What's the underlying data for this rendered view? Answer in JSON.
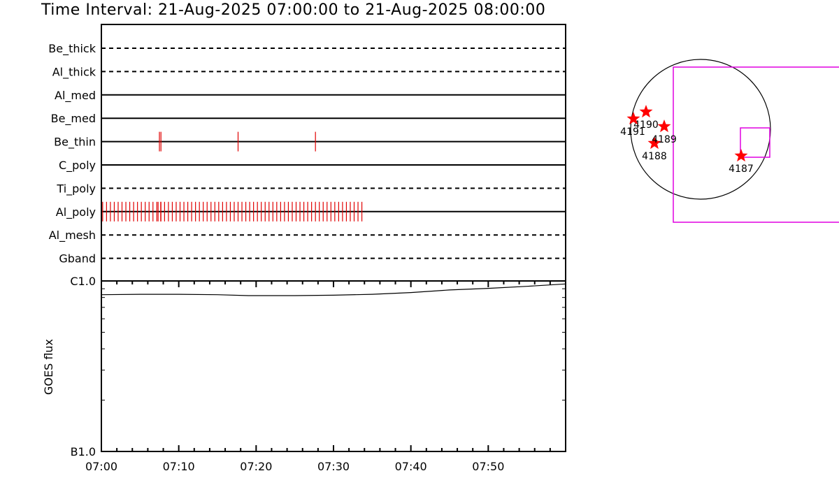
{
  "title": "Time Interval: 21-Aug-2025 07:00:00 to 21-Aug-2025 08:00:00",
  "colors": {
    "axes": "#000000",
    "events": "#e00000",
    "star": "#ff0000",
    "fov": "#e000e0"
  },
  "chart_data": [
    {
      "type": "event-timeline",
      "time_range": [
        "07:00:00",
        "08:00:00"
      ],
      "rows": [
        {
          "label": "Be_thick",
          "line": "dashed",
          "events": []
        },
        {
          "label": "Al_thick",
          "line": "dashed",
          "events": []
        },
        {
          "label": "Al_med",
          "line": "solid",
          "events": []
        },
        {
          "label": "Be_med",
          "line": "solid",
          "events": []
        },
        {
          "label": "Be_thin",
          "line": "solid",
          "events": [
            "07:07:30",
            "07:07:42",
            "07:17:40",
            "07:27:40"
          ]
        },
        {
          "label": "C_poly",
          "line": "solid",
          "events": []
        },
        {
          "label": "Ti_poly",
          "line": "dashed",
          "events": []
        },
        {
          "label": "Al_poly",
          "line": "solid",
          "events": {
            "start": "07:00:10",
            "end": "07:34:00",
            "step_seconds": 30,
            "extra": [
              "07:07:20",
              "07:07:42"
            ]
          }
        },
        {
          "label": "Al_mesh",
          "line": "dashed",
          "events": []
        },
        {
          "label": "Gband",
          "line": "dashed",
          "events": []
        }
      ]
    },
    {
      "type": "line",
      "ylabel": "GOES flux",
      "y_ticks": [
        {
          "label": "C1.0",
          "value": 1e-06
        },
        {
          "label": "B1.0",
          "value": 1e-07
        }
      ],
      "y_scale": "log",
      "ylim": [
        1e-07,
        1e-06
      ],
      "x_tick_labels": [
        "07:00",
        "07:10",
        "07:20",
        "07:30",
        "07:40",
        "07:50"
      ],
      "xlim": [
        "07:00",
        "08:00"
      ],
      "series": [
        {
          "x": [
            "07:00",
            "07:05",
            "07:10",
            "07:15",
            "07:19",
            "07:25",
            "07:30",
            "07:35",
            "07:40",
            "07:45",
            "07:50",
            "07:55",
            "08:00"
          ],
          "y": [
            8.3e-07,
            8.35e-07,
            8.35e-07,
            8.3e-07,
            8.2e-07,
            8.2e-07,
            8.25e-07,
            8.35e-07,
            8.55e-07,
            8.85e-07,
            9.05e-07,
            9.3e-07,
            9.6e-07
          ]
        }
      ]
    },
    {
      "type": "scatter",
      "description_free": true,
      "points": [
        {
          "label": "4187",
          "x": 0.58,
          "y": -0.38
        },
        {
          "label": "4188",
          "x": -0.66,
          "y": -0.2
        },
        {
          "label": "4189",
          "x": -0.52,
          "y": 0.04
        },
        {
          "label": "4190",
          "x": -0.78,
          "y": 0.25
        },
        {
          "label": "4191",
          "x": -0.96,
          "y": 0.15
        }
      ]
    }
  ]
}
